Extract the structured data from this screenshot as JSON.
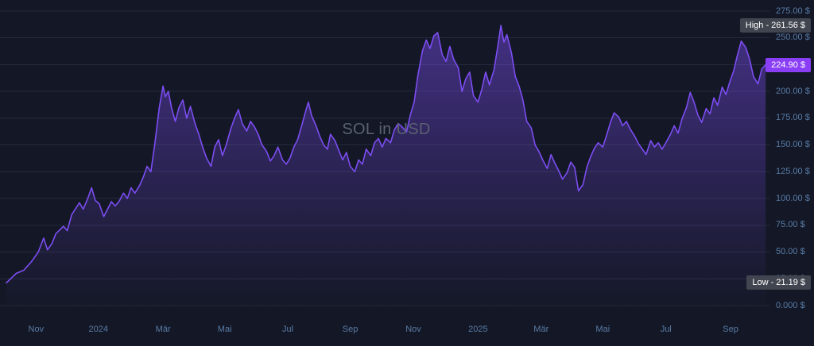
{
  "chart_data": {
    "type": "area",
    "title": "SOL in USD",
    "xlabel": "",
    "ylabel": "",
    "unit": "USD",
    "grid": true,
    "legend": null,
    "ylim": [
      0,
      275
    ],
    "colors": {
      "background": "#141826",
      "grid": "rgba(125,150,190,0.15)",
      "axis_text": "#587ba6",
      "line": "#7c4df2",
      "accent": "#8a3ff6",
      "badge_bg": "#40454f",
      "badge_text": "#ffffff",
      "watermark": "#5a6170"
    },
    "y_axis": {
      "ticks": [
        {
          "value": 275,
          "label": "275.00 $"
        },
        {
          "value": 250,
          "label": "250.00 $"
        },
        {
          "value": 225,
          "label": "225.00 $"
        },
        {
          "value": 200,
          "label": "200.00 $"
        },
        {
          "value": 175,
          "label": "175.00 $"
        },
        {
          "value": 150,
          "label": "150.00 $"
        },
        {
          "value": 125,
          "label": "125.00 $"
        },
        {
          "value": 100,
          "label": "100.00 $"
        },
        {
          "value": 75,
          "label": "75.00 $"
        },
        {
          "value": 50,
          "label": "50.00 $"
        },
        {
          "value": 25,
          "label": "25.00 $"
        },
        {
          "value": 0,
          "label": "0.000 $"
        }
      ]
    },
    "x_axis": {
      "labels": [
        {
          "label": "Nov",
          "t": 39
        },
        {
          "label": "2024",
          "t": 121
        },
        {
          "label": "Mär",
          "t": 206
        },
        {
          "label": "Mai",
          "t": 287
        },
        {
          "label": "Jul",
          "t": 370
        },
        {
          "label": "Sep",
          "t": 452
        },
        {
          "label": "Nov",
          "t": 535
        },
        {
          "label": "2025",
          "t": 620
        },
        {
          "label": "Mär",
          "t": 703
        },
        {
          "label": "Mai",
          "t": 784
        },
        {
          "label": "Jul",
          "t": 867
        },
        {
          "label": "Sep",
          "t": 952
        }
      ]
    },
    "markers": {
      "high": {
        "value": 261.56,
        "text": "High - 261.56 $"
      },
      "current": {
        "value": 224.9,
        "text": "224.90 $"
      },
      "low": {
        "value": 21.19,
        "text": "Low - 21.19 $"
      }
    },
    "series": [
      {
        "name": "SOL/USD",
        "points": [
          [
            0,
            21.19
          ],
          [
            13,
            30
          ],
          [
            23,
            33
          ],
          [
            33,
            41
          ],
          [
            42,
            50
          ],
          [
            49,
            63
          ],
          [
            54,
            52
          ],
          [
            60,
            58
          ],
          [
            65,
            67
          ],
          [
            75,
            74
          ],
          [
            80,
            70
          ],
          [
            86,
            85
          ],
          [
            96,
            96
          ],
          [
            101,
            90
          ],
          [
            107,
            100
          ],
          [
            112,
            110
          ],
          [
            117,
            98
          ],
          [
            122,
            95
          ],
          [
            128,
            83
          ],
          [
            133,
            90
          ],
          [
            138,
            97
          ],
          [
            143,
            93
          ],
          [
            148,
            97
          ],
          [
            154,
            105
          ],
          [
            159,
            100
          ],
          [
            164,
            110
          ],
          [
            169,
            105
          ],
          [
            175,
            112
          ],
          [
            180,
            120
          ],
          [
            185,
            130
          ],
          [
            190,
            125
          ],
          [
            195,
            150
          ],
          [
            201,
            185
          ],
          [
            206,
            205
          ],
          [
            209,
            195
          ],
          [
            213,
            200
          ],
          [
            217,
            185
          ],
          [
            222,
            172
          ],
          [
            227,
            185
          ],
          [
            232,
            192
          ],
          [
            237,
            175
          ],
          [
            242,
            186
          ],
          [
            248,
            170
          ],
          [
            253,
            160
          ],
          [
            258,
            148
          ],
          [
            263,
            138
          ],
          [
            269,
            130
          ],
          [
            274,
            148
          ],
          [
            279,
            155
          ],
          [
            284,
            140
          ],
          [
            289,
            150
          ],
          [
            295,
            165
          ],
          [
            300,
            175
          ],
          [
            305,
            183
          ],
          [
            310,
            170
          ],
          [
            316,
            163
          ],
          [
            321,
            172
          ],
          [
            326,
            167
          ],
          [
            331,
            160
          ],
          [
            336,
            150
          ],
          [
            342,
            144
          ],
          [
            347,
            135
          ],
          [
            352,
            140
          ],
          [
            357,
            148
          ],
          [
            363,
            136
          ],
          [
            368,
            132
          ],
          [
            373,
            138
          ],
          [
            378,
            148
          ],
          [
            383,
            155
          ],
          [
            389,
            170
          ],
          [
            394,
            183
          ],
          [
            397,
            190
          ],
          [
            401,
            178
          ],
          [
            407,
            168
          ],
          [
            412,
            158
          ],
          [
            417,
            150
          ],
          [
            422,
            146
          ],
          [
            426,
            160
          ],
          [
            432,
            154
          ],
          [
            437,
            145
          ],
          [
            442,
            136
          ],
          [
            447,
            143
          ],
          [
            452,
            130
          ],
          [
            458,
            125
          ],
          [
            463,
            136
          ],
          [
            468,
            132
          ],
          [
            473,
            146
          ],
          [
            479,
            140
          ],
          [
            484,
            152
          ],
          [
            489,
            156
          ],
          [
            494,
            148
          ],
          [
            499,
            156
          ],
          [
            505,
            152
          ],
          [
            510,
            164
          ],
          [
            515,
            170
          ],
          [
            520,
            167
          ],
          [
            526,
            162
          ],
          [
            531,
            178
          ],
          [
            536,
            190
          ],
          [
            541,
            215
          ],
          [
            547,
            238
          ],
          [
            552,
            248
          ],
          [
            557,
            240
          ],
          [
            562,
            252
          ],
          [
            567,
            255
          ],
          [
            573,
            234
          ],
          [
            578,
            228
          ],
          [
            583,
            242
          ],
          [
            588,
            230
          ],
          [
            594,
            222
          ],
          [
            599,
            200
          ],
          [
            604,
            212
          ],
          [
            609,
            218
          ],
          [
            614,
            196
          ],
          [
            620,
            190
          ],
          [
            625,
            202
          ],
          [
            630,
            218
          ],
          [
            635,
            206
          ],
          [
            641,
            220
          ],
          [
            646,
            242
          ],
          [
            650,
            261.56
          ],
          [
            654,
            246
          ],
          [
            658,
            253
          ],
          [
            664,
            236
          ],
          [
            669,
            214
          ],
          [
            674,
            205
          ],
          [
            679,
            192
          ],
          [
            684,
            172
          ],
          [
            690,
            166
          ],
          [
            695,
            150
          ],
          [
            700,
            144
          ],
          [
            705,
            136
          ],
          [
            711,
            128
          ],
          [
            716,
            141
          ],
          [
            721,
            133
          ],
          [
            726,
            126
          ],
          [
            731,
            118
          ],
          [
            737,
            124
          ],
          [
            742,
            134
          ],
          [
            747,
            129
          ],
          [
            752,
            107
          ],
          [
            758,
            113
          ],
          [
            763,
            129
          ],
          [
            768,
            139
          ],
          [
            773,
            147
          ],
          [
            778,
            152
          ],
          [
            784,
            148
          ],
          [
            789,
            159
          ],
          [
            794,
            171
          ],
          [
            799,
            180
          ],
          [
            805,
            176
          ],
          [
            810,
            168
          ],
          [
            815,
            172
          ],
          [
            820,
            165
          ],
          [
            826,
            158
          ],
          [
            831,
            151
          ],
          [
            836,
            146
          ],
          [
            841,
            141
          ],
          [
            847,
            154
          ],
          [
            852,
            148
          ],
          [
            857,
            152
          ],
          [
            862,
            146
          ],
          [
            867,
            152
          ],
          [
            873,
            160
          ],
          [
            878,
            168
          ],
          [
            883,
            161
          ],
          [
            888,
            174
          ],
          [
            894,
            185
          ],
          [
            899,
            199
          ],
          [
            904,
            190
          ],
          [
            909,
            178
          ],
          [
            914,
            171
          ],
          [
            920,
            184
          ],
          [
            925,
            179
          ],
          [
            930,
            194
          ],
          [
            935,
            187
          ],
          [
            941,
            204
          ],
          [
            946,
            197
          ],
          [
            951,
            209
          ],
          [
            956,
            219
          ],
          [
            961,
            234
          ],
          [
            966,
            247
          ],
          [
            972,
            241
          ],
          [
            977,
            230
          ],
          [
            982,
            214
          ],
          [
            988,
            207
          ],
          [
            993,
            221
          ],
          [
            998,
            224.9
          ]
        ]
      }
    ]
  }
}
